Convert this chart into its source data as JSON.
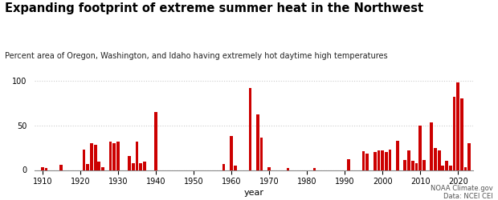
{
  "title": "Expanding footprint of extreme summer heat in the Northwest",
  "subtitle": "Percent area of Oregon, Washington, and Idaho having extremely hot daytime high temperatures",
  "xlabel": "year",
  "source_line1": "NOAA Climate.gov",
  "source_line2": "Data: NCEI CEI",
  "bar_color": "#cc0000",
  "background_color": "#ffffff",
  "years": [
    1910,
    1911,
    1912,
    1913,
    1914,
    1915,
    1916,
    1917,
    1918,
    1919,
    1920,
    1921,
    1922,
    1923,
    1924,
    1925,
    1926,
    1927,
    1928,
    1929,
    1930,
    1931,
    1932,
    1933,
    1934,
    1935,
    1936,
    1937,
    1938,
    1939,
    1940,
    1941,
    1942,
    1943,
    1944,
    1945,
    1946,
    1947,
    1948,
    1949,
    1950,
    1951,
    1952,
    1953,
    1954,
    1955,
    1956,
    1957,
    1958,
    1959,
    1960,
    1961,
    1962,
    1963,
    1964,
    1965,
    1966,
    1967,
    1968,
    1969,
    1970,
    1971,
    1972,
    1973,
    1974,
    1975,
    1976,
    1977,
    1978,
    1979,
    1980,
    1981,
    1982,
    1983,
    1984,
    1985,
    1986,
    1987,
    1988,
    1989,
    1990,
    1991,
    1992,
    1993,
    1994,
    1995,
    1996,
    1997,
    1998,
    1999,
    2000,
    2001,
    2002,
    2003,
    2004,
    2005,
    2006,
    2007,
    2008,
    2009,
    2010,
    2011,
    2012,
    2013,
    2014,
    2015,
    2016,
    2017,
    2018,
    2019,
    2020,
    2021,
    2022,
    2023
  ],
  "values": [
    3,
    2,
    0,
    0,
    0,
    6,
    0,
    0,
    0,
    0,
    0,
    23,
    7,
    30,
    28,
    9,
    3,
    0,
    32,
    30,
    32,
    0,
    0,
    16,
    8,
    32,
    8,
    9,
    0,
    0,
    65,
    0,
    0,
    0,
    0,
    0,
    0,
    0,
    0,
    0,
    0,
    0,
    0,
    0,
    0,
    0,
    0,
    0,
    7,
    0,
    38,
    5,
    0,
    0,
    0,
    92,
    0,
    62,
    36,
    0,
    3,
    0,
    0,
    0,
    0,
    2,
    0,
    0,
    0,
    0,
    0,
    0,
    2,
    0,
    0,
    0,
    0,
    0,
    0,
    0,
    0,
    12,
    0,
    0,
    0,
    21,
    18,
    0,
    20,
    22,
    22,
    20,
    23,
    0,
    33,
    0,
    11,
    22,
    10,
    8,
    50,
    11,
    0,
    53,
    25,
    22,
    5,
    10,
    5,
    82,
    98,
    80,
    3,
    30
  ],
  "ylim": [
    0,
    105
  ],
  "yticks": [
    0,
    50,
    100
  ],
  "xlim": [
    1908,
    2024
  ],
  "xticks": [
    1910,
    1920,
    1930,
    1940,
    1950,
    1960,
    1970,
    1980,
    1990,
    2000,
    2010,
    2020
  ],
  "grid_color": "#cccccc",
  "grid_style": ":"
}
